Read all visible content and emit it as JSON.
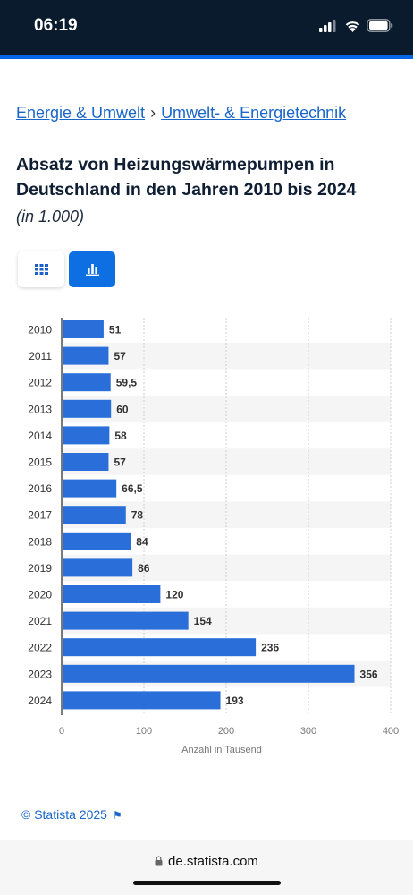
{
  "status_bar": {
    "time": "06:19"
  },
  "breadcrumb": {
    "items": [
      "Energie & Umwelt",
      "Umwelt- & Energietechnik"
    ],
    "separator": "›"
  },
  "title": "Absatz von Heizungswärmepumpen in Deutschland in den Jahren 2010 bis 2024",
  "subtitle": "(in 1.000)",
  "view_toggle": {
    "options": [
      "table-icon",
      "bar-chart-icon"
    ],
    "selected": "bar-chart-icon"
  },
  "chart_data": {
    "type": "bar",
    "orientation": "horizontal",
    "categories": [
      "2010",
      "2011",
      "2012",
      "2013",
      "2014",
      "2015",
      "2016",
      "2017",
      "2018",
      "2019",
      "2020",
      "2021",
      "2022",
      "2023",
      "2024"
    ],
    "values": [
      51,
      57,
      59.5,
      60,
      58,
      57,
      66.5,
      78,
      84,
      86,
      120,
      154,
      236,
      356,
      193
    ],
    "value_labels": [
      "51",
      "57",
      "59,5",
      "60",
      "58",
      "57",
      "66,5",
      "78",
      "84",
      "86",
      "120",
      "154",
      "236",
      "356",
      "193"
    ],
    "xlabel": "Anzahl in Tausend",
    "xlim": [
      0,
      400
    ],
    "xticks": [
      "0",
      "100",
      "200",
      "300",
      "400"
    ],
    "grid": true,
    "bar_color": "#2a6fd9",
    "legend": "none"
  },
  "footer": {
    "copyright": "© Statista 2025",
    "flag_icon": "flag-icon"
  },
  "browser": {
    "url": "de.statista.com"
  },
  "colors": {
    "accent": "#0666e5",
    "link": "#1a66c9",
    "title": "#0f1e33"
  }
}
